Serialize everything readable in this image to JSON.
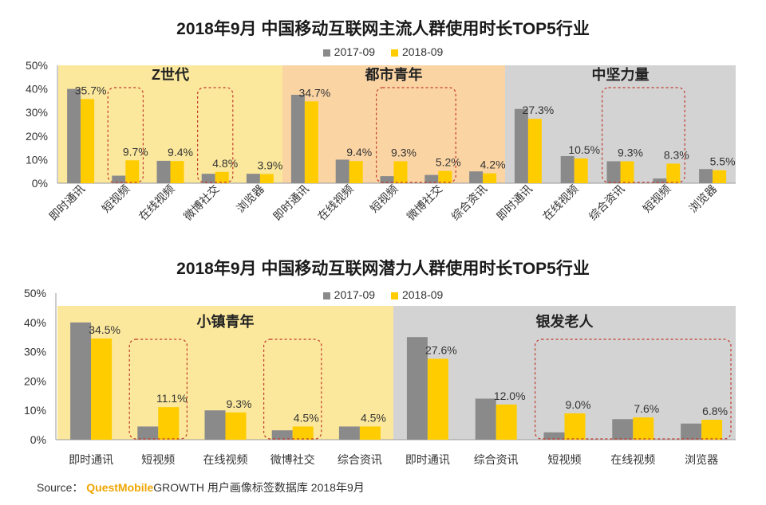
{
  "colors": {
    "s2017": "#8a8a8a",
    "s2018": "#ffcc00",
    "panel_yellow": "#fbe89c",
    "panel_orange": "#fbd4a4",
    "panel_gray": "#d3d3d3",
    "dash_red": "#c0392b"
  },
  "legend": [
    "2017-09",
    "2018-09"
  ],
  "source": {
    "label": "Source：",
    "brand": "QuestMobile",
    "rest": "GROWTH 用户画像标签数据库 2018年9月"
  },
  "chart_data": [
    {
      "type": "bar",
      "title": "2018年9月 中国移动互联网主流人群使用时长TOP5行业",
      "ylim": [
        0,
        50
      ],
      "yticks": [
        "0%",
        "10%",
        "20%",
        "30%",
        "40%",
        "50%"
      ],
      "legend_position": "top",
      "groups": [
        {
          "name": "Z世代",
          "categories": [
            "即时通讯",
            "短视频",
            "在线视频",
            "微博社交",
            "浏览器"
          ],
          "s2017": [
            40.0,
            3.2,
            9.5,
            4.0,
            4.0
          ],
          "s2018": [
            35.7,
            9.7,
            9.4,
            4.8,
            3.9
          ],
          "labels": [
            "35.7%",
            "9.7%",
            "9.4%",
            "4.8%",
            "3.9%"
          ],
          "highlight": [
            [
              1,
              1
            ],
            [
              3,
              3
            ]
          ]
        },
        {
          "name": "都市青年",
          "categories": [
            "即时通讯",
            "在线视频",
            "短视频",
            "微博社交",
            "综合资讯"
          ],
          "s2017": [
            37.5,
            10.0,
            3.0,
            3.5,
            5.0
          ],
          "s2018": [
            34.7,
            9.4,
            9.3,
            5.2,
            4.2
          ],
          "labels": [
            "34.7%",
            "9.4%",
            "9.3%",
            "5.2%",
            "4.2%"
          ],
          "highlight": [
            [
              2,
              3
            ]
          ]
        },
        {
          "name": "中坚力量",
          "categories": [
            "即时通讯",
            "在线视频",
            "综合资讯",
            "短视频",
            "浏览器"
          ],
          "s2017": [
            31.5,
            11.5,
            9.3,
            2.0,
            6.0
          ],
          "s2018": [
            27.3,
            10.5,
            9.3,
            8.3,
            5.5
          ],
          "labels": [
            "27.3%",
            "10.5%",
            "9.3%",
            "8.3%",
            "5.5%"
          ],
          "highlight": [
            [
              2,
              3
            ]
          ]
        }
      ]
    },
    {
      "type": "bar",
      "title": "2018年9月 中国移动互联网潜力人群使用时长TOP5行业",
      "ylim": [
        0,
        50
      ],
      "yticks": [
        "0%",
        "10%",
        "20%",
        "30%",
        "40%",
        "50%"
      ],
      "legend_position": "top",
      "groups": [
        {
          "name": "小镇青年",
          "categories": [
            "即时通讯",
            "短视频",
            "在线视频",
            "微博社交",
            "综合资讯"
          ],
          "s2017": [
            40.0,
            4.5,
            10.0,
            3.2,
            4.5
          ],
          "s2018": [
            34.5,
            11.1,
            9.3,
            4.5,
            4.5
          ],
          "labels": [
            "34.5%",
            "11.1%",
            "9.3%",
            "4.5%",
            "4.5%"
          ],
          "highlight": [
            [
              1,
              1
            ],
            [
              3,
              3
            ]
          ]
        },
        {
          "name": "银发老人",
          "categories": [
            "即时通讯",
            "综合资讯",
            "短视频",
            "在线视频",
            "浏览器"
          ],
          "s2017": [
            35.0,
            14.0,
            2.5,
            7.0,
            5.5
          ],
          "s2018": [
            27.6,
            12.0,
            9.0,
            7.6,
            6.8
          ],
          "labels": [
            "27.6%",
            "12.0%",
            "9.0%",
            "7.6%",
            "6.8%"
          ],
          "highlight": [
            [
              2,
              4
            ]
          ]
        }
      ]
    }
  ]
}
